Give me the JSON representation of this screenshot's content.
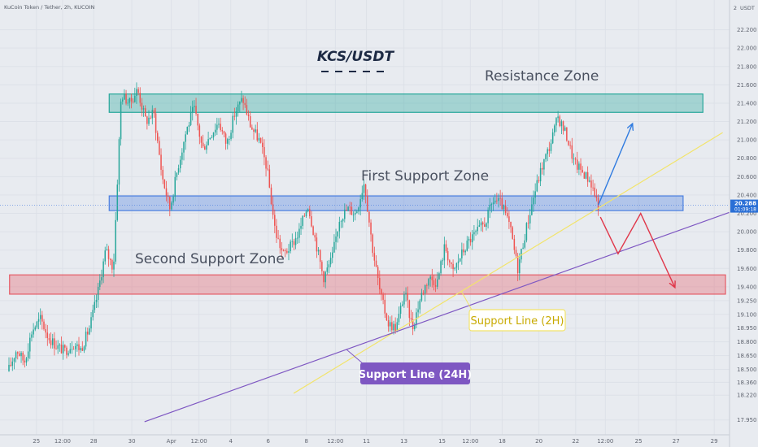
{
  "header": {
    "symbol_text": "KuCoin Token / Tether, 2h, KUCOIN",
    "currency": "USDT"
  },
  "chart_data": {
    "type": "candlestick",
    "title": "KCS/USDT",
    "ylim": [
      17.85,
      22.4
    ],
    "y_ticks": [
      17.95,
      18.22,
      18.36,
      18.5,
      18.65,
      18.8,
      18.95,
      19.1,
      19.25,
      19.4,
      19.6,
      19.8,
      20.0,
      20.2,
      20.4,
      20.6,
      20.8,
      21.0,
      21.2,
      21.4,
      21.6,
      21.8,
      22.0,
      22.2
    ],
    "y_tick_labels": [
      "17.950",
      "18.220",
      "18.360",
      "18.500",
      "18.650",
      "18.800",
      "18.950",
      "19.100",
      "19.250",
      "19.400",
      "19.600",
      "19.800",
      "20.000",
      "20.200",
      "20.400",
      "20.600",
      "20.800",
      "21.000",
      "21.200",
      "21.400",
      "21.600",
      "21.800",
      "22.000",
      "22.200"
    ],
    "top_label": "2",
    "x_range": [
      0,
      100
    ],
    "x_ticks": [
      {
        "pos": 4.0,
        "label": "25"
      },
      {
        "pos": 7.7,
        "label": "12:00"
      },
      {
        "pos": 12.1,
        "label": "28"
      },
      {
        "pos": 17.5,
        "label": "30"
      },
      {
        "pos": 23.1,
        "label": "Apr"
      },
      {
        "pos": 27.0,
        "label": "12:00"
      },
      {
        "pos": 31.5,
        "label": "4"
      },
      {
        "pos": 36.8,
        "label": "6"
      },
      {
        "pos": 42.2,
        "label": "8"
      },
      {
        "pos": 46.3,
        "label": "12:00"
      },
      {
        "pos": 50.7,
        "label": "11"
      },
      {
        "pos": 56.0,
        "label": "13"
      },
      {
        "pos": 61.4,
        "label": "15"
      },
      {
        "pos": 65.4,
        "label": "12:00"
      },
      {
        "pos": 69.9,
        "label": "18"
      },
      {
        "pos": 75.1,
        "label": "20"
      },
      {
        "pos": 80.3,
        "label": "22"
      },
      {
        "pos": 84.5,
        "label": "12:00"
      },
      {
        "pos": 89.2,
        "label": "25"
      },
      {
        "pos": 94.5,
        "label": "27"
      },
      {
        "pos": 99.9,
        "label": "29"
      }
    ],
    "price_line": {
      "value": 20.288,
      "label": "20.288",
      "countdown": "01:09:18"
    },
    "zones": [
      {
        "name": "Resistance Zone",
        "label": "Resistance Zone",
        "x0": 14.3,
        "x1": 98.3,
        "y_low": 21.3,
        "y_high": 21.5,
        "color": "#26a69a"
      },
      {
        "name": "First Support Zone",
        "label": "First Support Zone",
        "x0": 14.3,
        "x1": 95.5,
        "y_low": 20.23,
        "y_high": 20.39,
        "color": "#4a7fe0"
      },
      {
        "name": "Second Support Zone",
        "label": "Second Support Zone",
        "x0": 0.2,
        "x1": 101.5,
        "y_low": 19.32,
        "y_high": 19.53,
        "color": "#e55b66"
      }
    ],
    "support_lines": [
      {
        "label": "Support Line (2H)",
        "color": "#f2e46a",
        "text_color": "#f2e46a",
        "callout_bg": "#ffffff",
        "callout_text": "#c8aa00",
        "x0": 40.4,
        "y0": 18.24,
        "x1": 101.1,
        "y1": 21.08
      },
      {
        "label": "Support Line (24H)",
        "color": "#7e57c2",
        "text_color": "#ffffff",
        "callout_bg": "#7e57c2",
        "x0": 19.3,
        "y0": 17.93,
        "x1": 103.1,
        "y1": 20.24
      }
    ],
    "projection_bull": [
      {
        "x": 83.5,
        "y": 20.29
      },
      {
        "x": 88.3,
        "y": 21.17
      }
    ],
    "projection_bear": [
      {
        "x": 83.8,
        "y": 20.16
      },
      {
        "x": 86.3,
        "y": 19.76
      },
      {
        "x": 89.5,
        "y": 20.2
      },
      {
        "x": 94.3,
        "y": 19.4
      }
    ],
    "price_path": [
      {
        "x": 0.0,
        "y": 18.48
      },
      {
        "x": 1.2,
        "y": 18.72
      },
      {
        "x": 2.3,
        "y": 18.58
      },
      {
        "x": 3.4,
        "y": 18.93
      },
      {
        "x": 4.6,
        "y": 19.05
      },
      {
        "x": 5.7,
        "y": 18.85
      },
      {
        "x": 6.9,
        "y": 18.75
      },
      {
        "x": 8.0,
        "y": 18.7
      },
      {
        "x": 9.2,
        "y": 18.78
      },
      {
        "x": 10.3,
        "y": 18.72
      },
      {
        "x": 11.5,
        "y": 18.95
      },
      {
        "x": 12.6,
        "y": 19.3
      },
      {
        "x": 13.8,
        "y": 19.8
      },
      {
        "x": 14.9,
        "y": 19.6
      },
      {
        "x": 16.0,
        "y": 21.5
      },
      {
        "x": 17.2,
        "y": 21.4
      },
      {
        "x": 18.3,
        "y": 21.55
      },
      {
        "x": 19.5,
        "y": 21.2
      },
      {
        "x": 20.6,
        "y": 21.3
      },
      {
        "x": 21.8,
        "y": 20.6
      },
      {
        "x": 22.9,
        "y": 20.25
      },
      {
        "x": 24.0,
        "y": 20.7
      },
      {
        "x": 25.2,
        "y": 21.1
      },
      {
        "x": 26.3,
        "y": 21.35
      },
      {
        "x": 27.5,
        "y": 20.9
      },
      {
        "x": 28.6,
        "y": 21.05
      },
      {
        "x": 29.8,
        "y": 21.2
      },
      {
        "x": 30.9,
        "y": 20.95
      },
      {
        "x": 32.1,
        "y": 21.3
      },
      {
        "x": 33.2,
        "y": 21.45
      },
      {
        "x": 34.3,
        "y": 21.15
      },
      {
        "x": 35.5,
        "y": 21.0
      },
      {
        "x": 36.6,
        "y": 20.7
      },
      {
        "x": 37.8,
        "y": 20.0
      },
      {
        "x": 38.9,
        "y": 19.75
      },
      {
        "x": 40.1,
        "y": 19.85
      },
      {
        "x": 41.2,
        "y": 20.0
      },
      {
        "x": 42.4,
        "y": 20.3
      },
      {
        "x": 43.5,
        "y": 19.9
      },
      {
        "x": 44.6,
        "y": 19.5
      },
      {
        "x": 45.8,
        "y": 19.7
      },
      {
        "x": 46.9,
        "y": 20.15
      },
      {
        "x": 48.1,
        "y": 20.25
      },
      {
        "x": 49.2,
        "y": 20.2
      },
      {
        "x": 50.4,
        "y": 20.55
      },
      {
        "x": 51.5,
        "y": 19.85
      },
      {
        "x": 52.7,
        "y": 19.3
      },
      {
        "x": 53.8,
        "y": 19.0
      },
      {
        "x": 54.9,
        "y": 18.95
      },
      {
        "x": 56.1,
        "y": 19.35
      },
      {
        "x": 57.2,
        "y": 18.95
      },
      {
        "x": 58.4,
        "y": 19.3
      },
      {
        "x": 59.5,
        "y": 19.5
      },
      {
        "x": 60.7,
        "y": 19.45
      },
      {
        "x": 61.8,
        "y": 19.85
      },
      {
        "x": 62.9,
        "y": 19.55
      },
      {
        "x": 64.1,
        "y": 19.75
      },
      {
        "x": 65.2,
        "y": 19.9
      },
      {
        "x": 66.4,
        "y": 20.0
      },
      {
        "x": 67.5,
        "y": 20.1
      },
      {
        "x": 68.7,
        "y": 20.35
      },
      {
        "x": 69.8,
        "y": 20.3
      },
      {
        "x": 71.0,
        "y": 20.05
      },
      {
        "x": 72.1,
        "y": 19.6
      },
      {
        "x": 73.2,
        "y": 20.0
      },
      {
        "x": 74.4,
        "y": 20.4
      },
      {
        "x": 75.5,
        "y": 20.7
      },
      {
        "x": 76.7,
        "y": 20.95
      },
      {
        "x": 77.8,
        "y": 21.25
      },
      {
        "x": 79.0,
        "y": 21.05
      },
      {
        "x": 80.1,
        "y": 20.75
      },
      {
        "x": 81.3,
        "y": 20.65
      },
      {
        "x": 82.4,
        "y": 20.55
      },
      {
        "x": 83.5,
        "y": 20.29
      }
    ]
  }
}
